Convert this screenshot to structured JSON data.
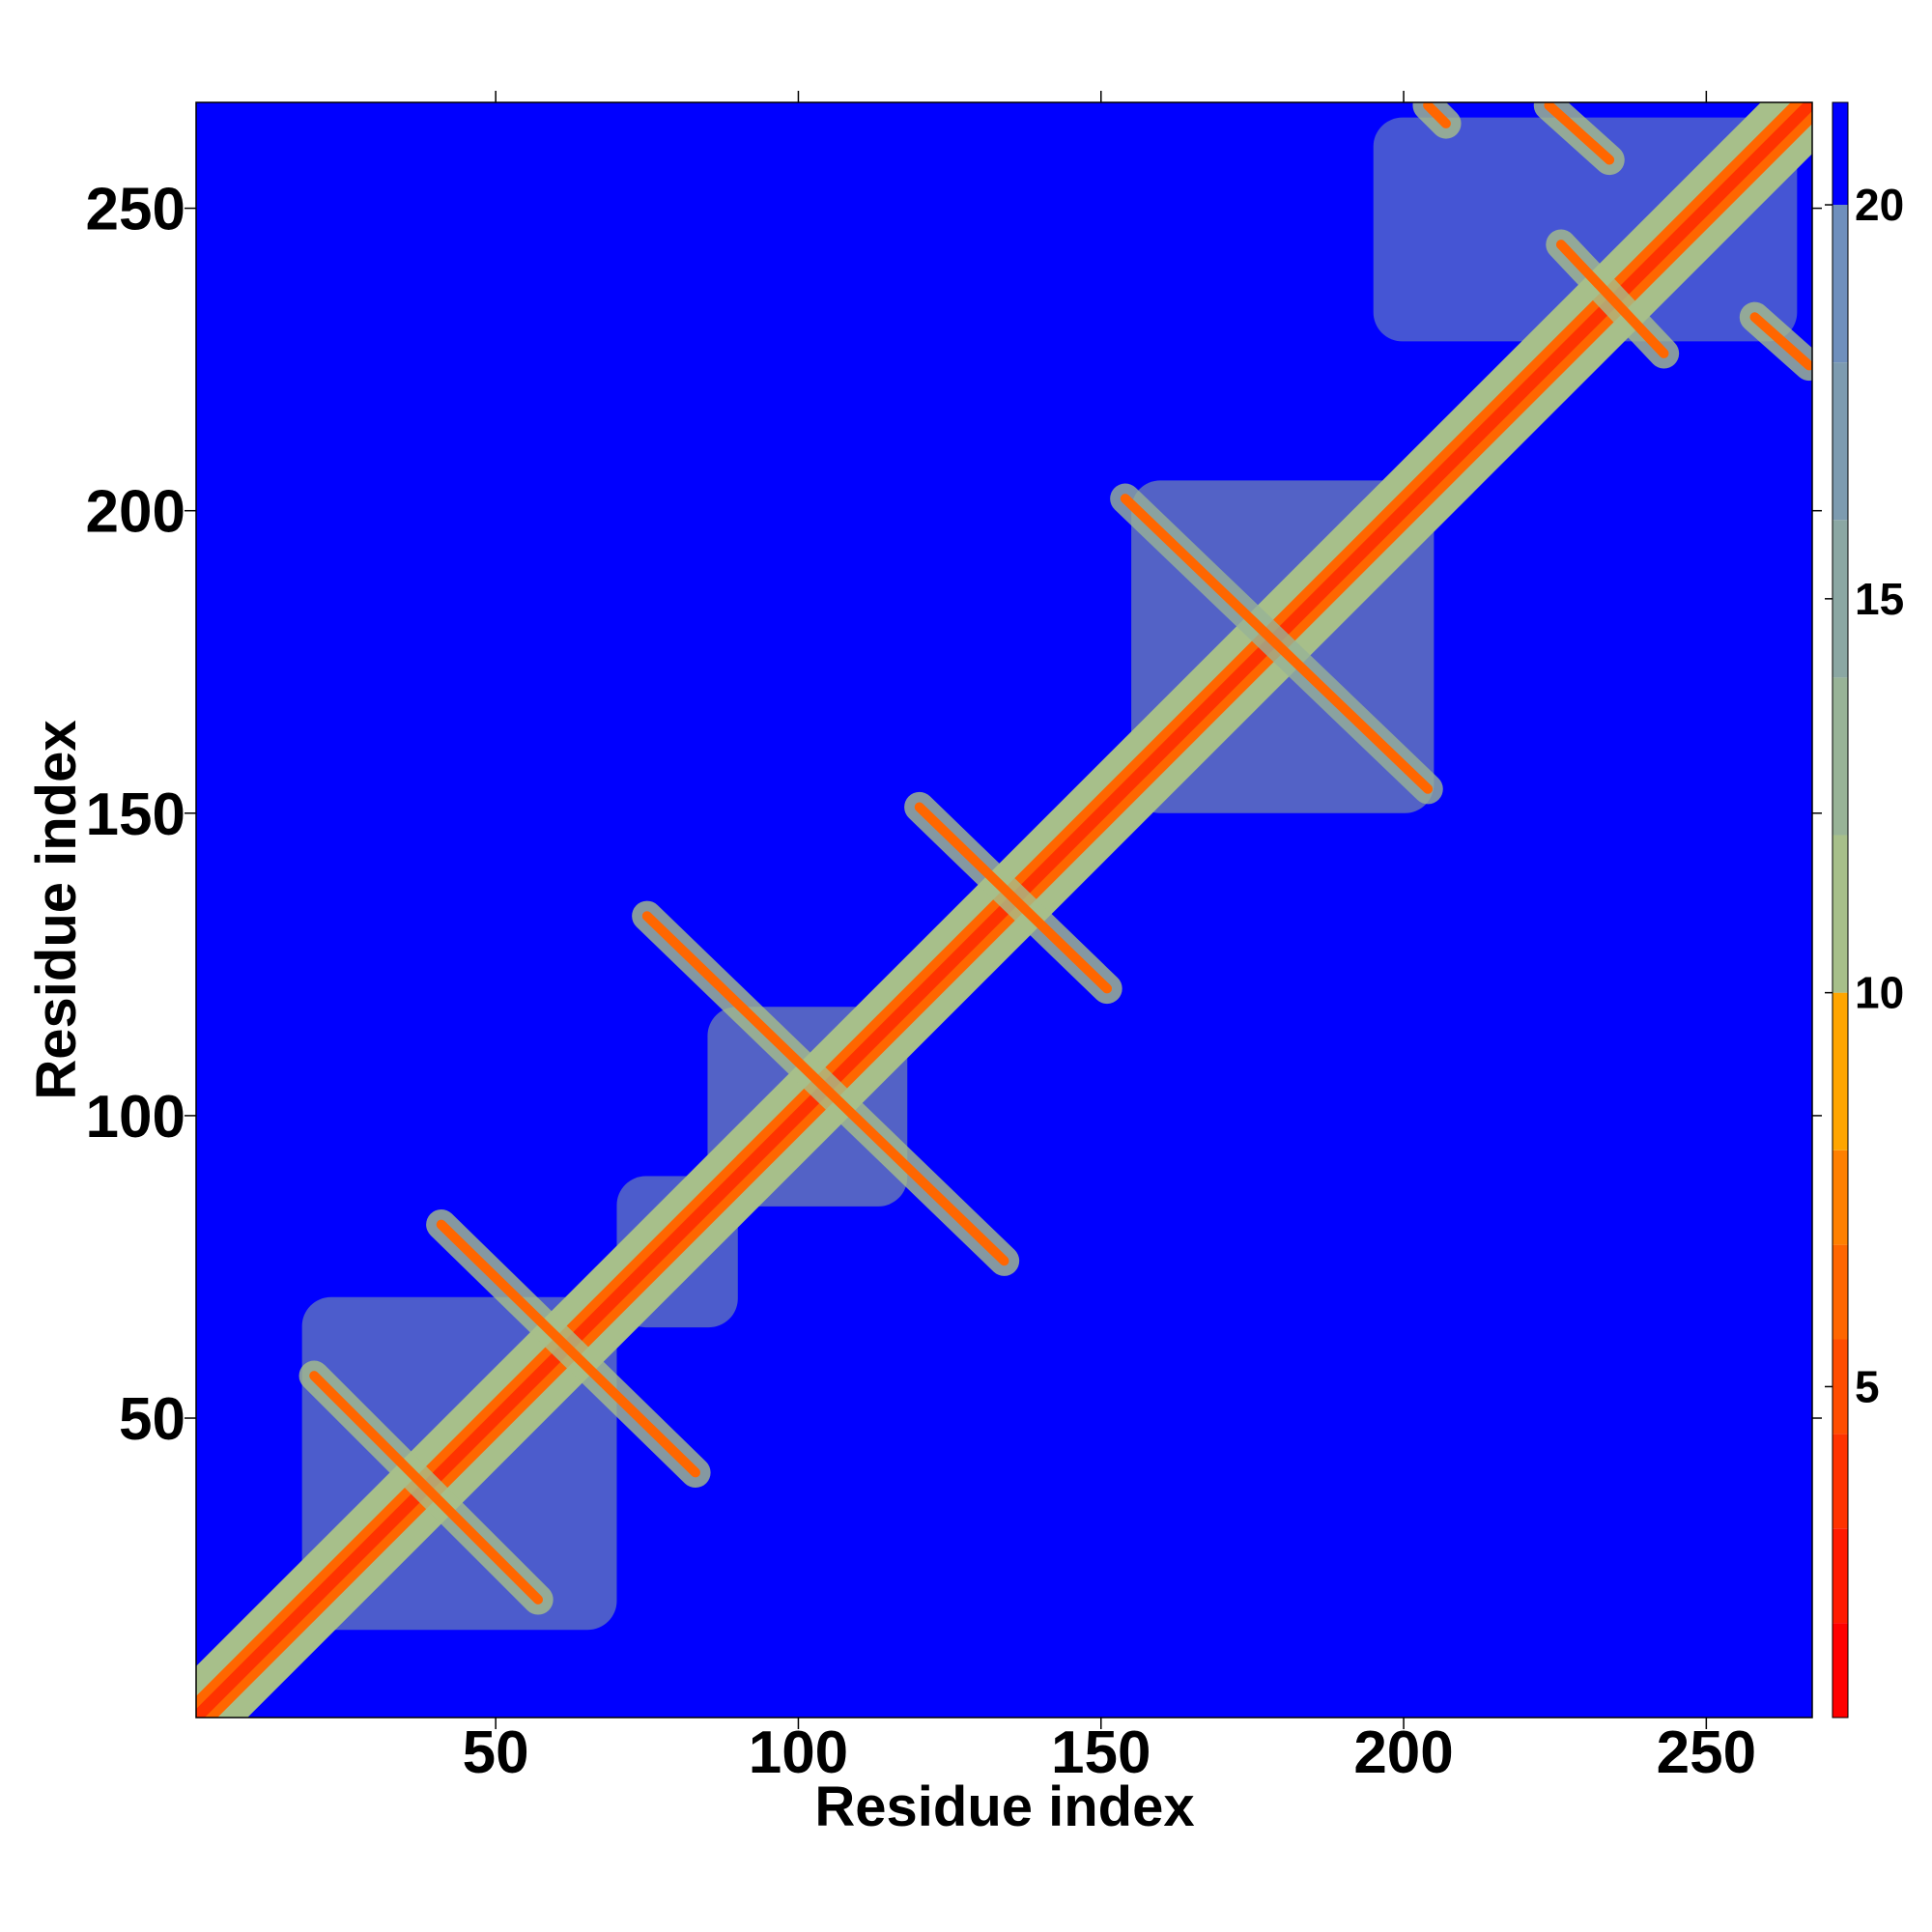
{
  "chart_data": {
    "type": "contact-map",
    "x_label": "Residue index",
    "y_label": "Residue index",
    "xlim": [
      0.5,
      267.5
    ],
    "ylim": [
      0.5,
      267.5
    ],
    "xticks": [
      50,
      100,
      150,
      200,
      250
    ],
    "yticks": [
      50,
      100,
      150,
      200,
      250
    ],
    "background": 21,
    "colorbar": {
      "lim": [
        0.8,
        21.3
      ],
      "ticks": [
        5,
        10,
        15,
        20
      ],
      "bounds": [
        0.8,
        2,
        3.2,
        4.4,
        5.6,
        6.8,
        8,
        10,
        12,
        14,
        16,
        18,
        20,
        21.3
      ],
      "colors": [
        "#ff0000",
        "#ff1a00",
        "#ff3300",
        "#ff4d00",
        "#ff6600",
        "#ff8000",
        "#ffa500",
        "#a7bf8a",
        "#98b397",
        "#8ba7a3",
        "#7d9bb0",
        "#6f8fbd",
        "#0000ff"
      ]
    },
    "diagonal": {
      "core": 3.8,
      "near": 6,
      "halo": 11
    },
    "patches": [
      {
        "from": [
          155,
          150
        ],
        "to": [
          205,
          205
        ],
        "value": 13
      },
      {
        "from": [
          85,
          85
        ],
        "to": [
          118,
          118
        ],
        "value": 13
      },
      {
        "from": [
          195,
          228
        ],
        "to": [
          265,
          265
        ],
        "value": 17
      },
      {
        "from": [
          18,
          15
        ],
        "to": [
          70,
          70
        ],
        "value": 15
      },
      {
        "from": [
          70,
          65
        ],
        "to": [
          90,
          90
        ],
        "value": 15
      }
    ],
    "stripes": [
      {
        "from": [
          20,
          57
        ],
        "to": [
          57,
          20
        ],
        "core": 6,
        "halo": 11
      },
      {
        "from": [
          41,
          82
        ],
        "to": [
          83,
          41
        ],
        "core": 6,
        "halo": 11
      },
      {
        "from": [
          75,
          133
        ],
        "to": [
          134,
          76
        ],
        "core": 6.5,
        "halo": 11
      },
      {
        "from": [
          120,
          151
        ],
        "to": [
          151,
          121
        ],
        "core": 6,
        "halo": 11
      },
      {
        "from": [
          154,
          202
        ],
        "to": [
          204,
          154
        ],
        "core": 6.5,
        "halo": 12
      },
      {
        "from": [
          226,
          244
        ],
        "to": [
          243,
          226
        ],
        "core": 6,
        "halo": 11
      },
      {
        "from": [
          224,
          267
        ],
        "to": [
          234,
          258
        ],
        "core": 6,
        "halo": 11
      },
      {
        "from": [
          258,
          232
        ],
        "to": [
          267,
          224
        ],
        "core": 6,
        "halo": 11
      },
      {
        "from": [
          204,
          267
        ],
        "to": [
          207,
          264
        ],
        "core": 6,
        "halo": 11
      }
    ]
  }
}
